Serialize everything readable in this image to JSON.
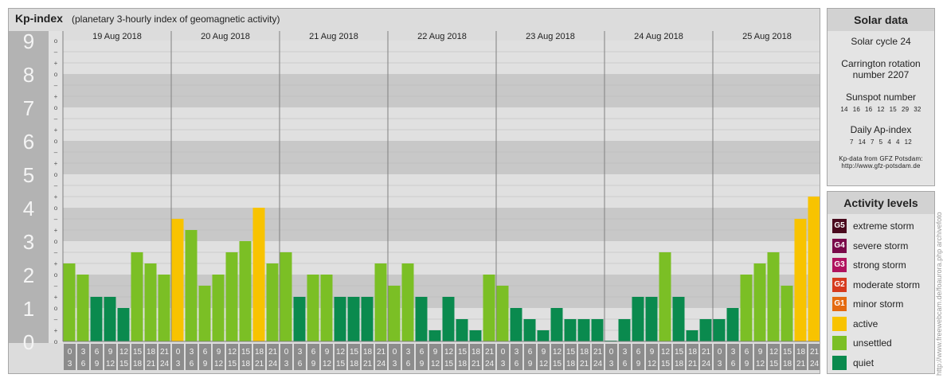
{
  "title": "Kp-index",
  "subtitle": "(planetary 3-hourly index of geomagnetic activity)",
  "chart_data": {
    "type": "bar",
    "title": "Kp-index",
    "subtitle": "(planetary 3-hourly index of geomagnetic activity)",
    "ylim": [
      0,
      9
    ],
    "y_ticks": [
      "0",
      "1",
      "2",
      "3",
      "4",
      "5",
      "6",
      "7",
      "8",
      "9"
    ],
    "minor_ticks": [
      "+",
      "o",
      "–"
    ],
    "days": [
      "19 Aug 2018",
      "20 Aug 2018",
      "21 Aug 2018",
      "22 Aug 2018",
      "23 Aug 2018",
      "24 Aug 2018",
      "25 Aug 2018"
    ],
    "hour_start_labels": [
      "0",
      "3",
      "6",
      "9",
      "12",
      "15",
      "18",
      "21"
    ],
    "hour_end_labels": [
      "3",
      "6",
      "9",
      "12",
      "15",
      "18",
      "21",
      "24"
    ],
    "values": [
      [
        2.333,
        2.0,
        1.333,
        1.333,
        1.0,
        2.667,
        2.333,
        2.0
      ],
      [
        3.667,
        3.333,
        1.667,
        2.0,
        2.667,
        3.0,
        4.0,
        2.333
      ],
      [
        2.667,
        1.333,
        2.0,
        2.0,
        1.333,
        1.333,
        1.333,
        2.333
      ],
      [
        1.667,
        2.333,
        1.333,
        0.333,
        1.333,
        0.667,
        0.333,
        2.0
      ],
      [
        1.667,
        1.0,
        0.667,
        0.333,
        1.0,
        0.667,
        0.667,
        0.667
      ],
      [
        0.0,
        0.667,
        1.333,
        1.333,
        2.667,
        1.333,
        0.333,
        0.667
      ],
      [
        0.667,
        1.0,
        2.0,
        2.333,
        2.667,
        1.667,
        3.667,
        4.333
      ]
    ],
    "colors": {
      "quiet": "#0a8a4e",
      "unsettled": "#7bbf25",
      "active": "#f8c300"
    }
  },
  "solar": {
    "header": "Solar data",
    "cycle": "Solar cycle 24",
    "carrington_line1": "Carrington rotation",
    "carrington_line2": "number 2207",
    "sunspot_label": "Sunspot number",
    "sunspot_values": [
      "14",
      "16",
      "16",
      "12",
      "15",
      "29",
      "32"
    ],
    "ap_label": "Daily Ap-index",
    "ap_values": [
      "7",
      "14",
      "7",
      "5",
      "4",
      "4",
      "12"
    ],
    "credit_line1": "Kp-data from GFZ Potsdam:",
    "credit_line2": "http://www.gfz-potsdam.de"
  },
  "levels": {
    "header": "Activity levels",
    "items": [
      {
        "code": "G5",
        "label": "extreme storm",
        "color": "#4a0a1e"
      },
      {
        "code": "G4",
        "label": "severe storm",
        "color": "#7a0a4a"
      },
      {
        "code": "G3",
        "label": "strong storm",
        "color": "#b0125e"
      },
      {
        "code": "G2",
        "label": "moderate storm",
        "color": "#d63a1e"
      },
      {
        "code": "G1",
        "label": "minor storm",
        "color": "#e46a10"
      },
      {
        "code": "",
        "label": "active",
        "color": "#f8c300"
      },
      {
        "code": "",
        "label": "unsettled",
        "color": "#7bbf25"
      },
      {
        "code": "",
        "label": "quiet",
        "color": "#0a8a4e"
      }
    ]
  },
  "watermark": "http://www.freewebcam.de/foaurora.php archivefoto"
}
